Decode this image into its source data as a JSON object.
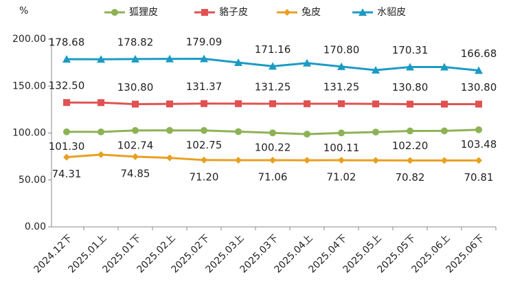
{
  "chart_data": {
    "type": "line",
    "y_label": "%",
    "categories": [
      "2024.12下",
      "2025.01上",
      "2025.01下",
      "2025.02上",
      "2025.02下",
      "2025.03上",
      "2025.03下",
      "2025.04上",
      "2025.04下",
      "2025.05上",
      "2025.05下",
      "2025.06上",
      "2025.06下"
    ],
    "series": [
      {
        "name": "狐狸皮",
        "color": "#8db255",
        "values": [
          101.3,
          101.2,
          102.74,
          102.8,
          102.75,
          101.5,
          100.22,
          98.8,
          100.11,
          101.0,
          102.2,
          102.3,
          103.48
        ],
        "value_labels": [
          "101.30",
          null,
          "102.74",
          null,
          "102.75",
          null,
          "100.22",
          null,
          "100.11",
          null,
          "102.20",
          null,
          "103.48"
        ]
      },
      {
        "name": "貉子皮",
        "color": "#e05252",
        "values": [
          132.5,
          132.4,
          130.8,
          131.0,
          131.37,
          131.3,
          131.25,
          131.2,
          131.25,
          131.0,
          130.8,
          130.8,
          130.8
        ],
        "value_labels": [
          "132.50",
          null,
          "130.80",
          null,
          "131.37",
          null,
          "131.25",
          null,
          "131.25",
          null,
          "130.80",
          null,
          "130.80"
        ]
      },
      {
        "name": "兔皮",
        "color": "#e8a020",
        "values": [
          74.31,
          77.0,
          74.85,
          73.5,
          71.2,
          71.1,
          71.06,
          71.0,
          71.02,
          70.9,
          70.82,
          70.8,
          70.81
        ],
        "value_labels": [
          "74.31",
          null,
          "74.85",
          null,
          "71.20",
          null,
          "71.06",
          null,
          "71.02",
          null,
          "70.82",
          null,
          "70.81"
        ]
      },
      {
        "name": "水貂皮",
        "color": "#1b9bc4",
        "values": [
          178.68,
          178.6,
          178.82,
          179.0,
          179.09,
          175.1,
          171.16,
          174.5,
          170.8,
          167.0,
          170.31,
          170.3,
          166.68
        ],
        "value_labels": [
          "178.68",
          null,
          "178.82",
          null,
          "179.09",
          null,
          "171.16",
          null,
          "170.80",
          null,
          "170.31",
          null,
          "166.68"
        ]
      }
    ],
    "ylim": [
      0,
      200
    ],
    "yticks": [
      {
        "value": 0,
        "label": "0.00"
      },
      {
        "value": 50,
        "label": "50.00"
      },
      {
        "value": 100,
        "label": "100.00"
      },
      {
        "value": 150,
        "label": "150.00"
      },
      {
        "value": 200,
        "label": "200.00"
      }
    ],
    "legend": "top"
  }
}
